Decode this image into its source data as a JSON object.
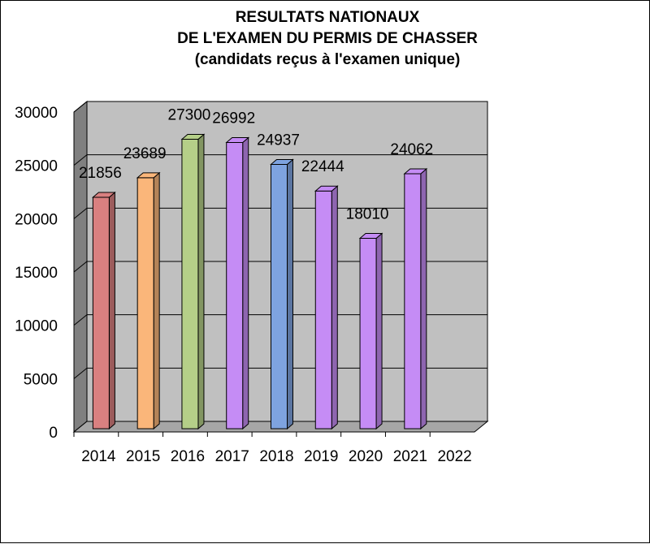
{
  "chart_data": {
    "type": "bar",
    "title_lines": [
      "RESULTATS NATIONAUX",
      "DE L'EXAMEN DU PERMIS DE CHASSER",
      "(candidats reçus à l'examen unique)"
    ],
    "xlabel": "",
    "ylabel": "",
    "categories": [
      "2014",
      "2015",
      "2016",
      "2017",
      "2018",
      "2019",
      "2020",
      "2021",
      "2022"
    ],
    "values": [
      21856,
      23689,
      27300,
      26992,
      24937,
      22444,
      18010,
      24062,
      null
    ],
    "data_labels": [
      "21856",
      "23689",
      "27300",
      "26992",
      "24937",
      "22444",
      "18010",
      "24062",
      ""
    ],
    "bar_colors": [
      "#d98080",
      "#fab67a",
      "#b5cf88",
      "#c58cf5",
      "#7ea3e0",
      "#c58cf5",
      "#c58cf5",
      "#c58cf5",
      "#c58cf5"
    ],
    "ylim": [
      0,
      30000
    ],
    "yticks": [
      0,
      5000,
      10000,
      15000,
      20000,
      25000,
      30000
    ],
    "ytick_labels": [
      "0",
      "5000",
      "10000",
      "15000",
      "20000",
      "25000",
      "30000"
    ],
    "grid": true,
    "legend": "none",
    "wall_color": "#c0c0c0"
  }
}
